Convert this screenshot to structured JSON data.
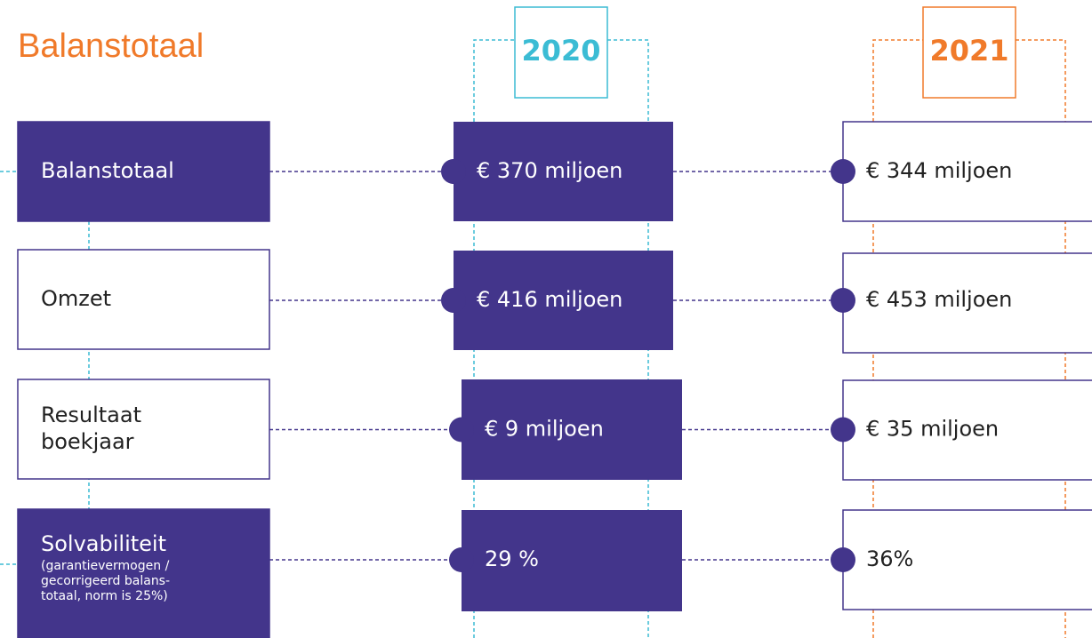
{
  "header": {
    "title": "Balanstotaal"
  },
  "years": [
    "2020",
    "2021"
  ],
  "rows": [
    {
      "label_lines": [
        "Balanstotaal"
      ],
      "v2020": "€ 370 miljoen",
      "v2021": "€ 344 miljoen"
    },
    {
      "label_lines": [
        "Omzet"
      ],
      "v2020": "€ 416 miljoen",
      "v2021": "€ 453 miljoen"
    },
    {
      "label_lines": [
        "Resultaat",
        "boekjaar"
      ],
      "v2020": "€ 9 miljoen",
      "v2021": "€ 35 miljoen"
    },
    {
      "label_lines": [
        "Solvabiliteit"
      ],
      "note_lines": [
        "(garantievermogen /",
        "gecorrigeerd balans-",
        "totaal, norm is 25%)"
      ],
      "v2020": "29 %",
      "v2021": "36%"
    }
  ]
}
